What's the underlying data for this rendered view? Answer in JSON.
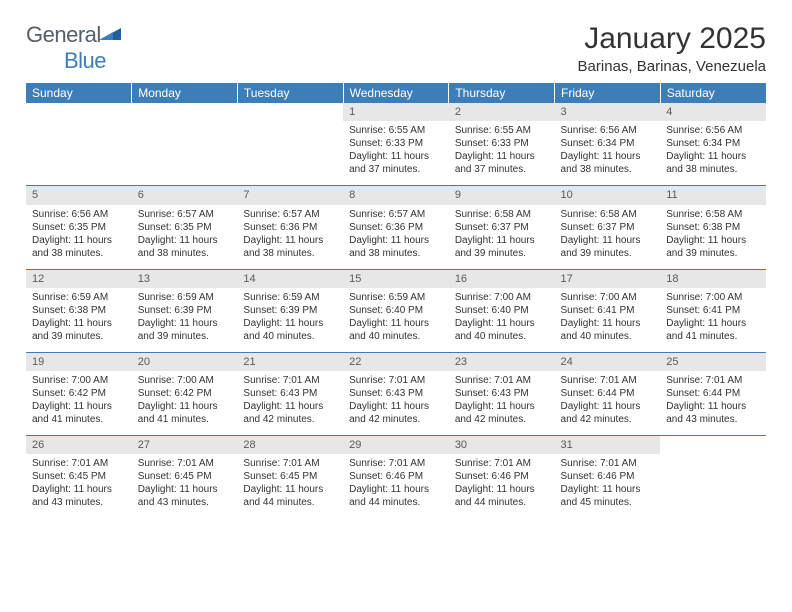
{
  "logo": {
    "text1": "General",
    "text2": "Blue"
  },
  "title": "January 2025",
  "location": "Barinas, Barinas, Venezuela",
  "colors": {
    "header_bg": "#3d7eb9",
    "header_text": "#ffffff",
    "daynum_bg": "#e7e7e7",
    "daynum_text": "#5a5a5a",
    "border": "#3d7eb9",
    "body_text": "#333333"
  },
  "day_headers": [
    "Sunday",
    "Monday",
    "Tuesday",
    "Wednesday",
    "Thursday",
    "Friday",
    "Saturday"
  ],
  "weeks": [
    [
      null,
      null,
      null,
      {
        "n": "1",
        "sunrise": "6:55 AM",
        "sunset": "6:33 PM",
        "daylight": "11 hours and 37 minutes."
      },
      {
        "n": "2",
        "sunrise": "6:55 AM",
        "sunset": "6:33 PM",
        "daylight": "11 hours and 37 minutes."
      },
      {
        "n": "3",
        "sunrise": "6:56 AM",
        "sunset": "6:34 PM",
        "daylight": "11 hours and 38 minutes."
      },
      {
        "n": "4",
        "sunrise": "6:56 AM",
        "sunset": "6:34 PM",
        "daylight": "11 hours and 38 minutes."
      }
    ],
    [
      {
        "n": "5",
        "sunrise": "6:56 AM",
        "sunset": "6:35 PM",
        "daylight": "11 hours and 38 minutes."
      },
      {
        "n": "6",
        "sunrise": "6:57 AM",
        "sunset": "6:35 PM",
        "daylight": "11 hours and 38 minutes."
      },
      {
        "n": "7",
        "sunrise": "6:57 AM",
        "sunset": "6:36 PM",
        "daylight": "11 hours and 38 minutes."
      },
      {
        "n": "8",
        "sunrise": "6:57 AM",
        "sunset": "6:36 PM",
        "daylight": "11 hours and 38 minutes."
      },
      {
        "n": "9",
        "sunrise": "6:58 AM",
        "sunset": "6:37 PM",
        "daylight": "11 hours and 39 minutes."
      },
      {
        "n": "10",
        "sunrise": "6:58 AM",
        "sunset": "6:37 PM",
        "daylight": "11 hours and 39 minutes."
      },
      {
        "n": "11",
        "sunrise": "6:58 AM",
        "sunset": "6:38 PM",
        "daylight": "11 hours and 39 minutes."
      }
    ],
    [
      {
        "n": "12",
        "sunrise": "6:59 AM",
        "sunset": "6:38 PM",
        "daylight": "11 hours and 39 minutes."
      },
      {
        "n": "13",
        "sunrise": "6:59 AM",
        "sunset": "6:39 PM",
        "daylight": "11 hours and 39 minutes."
      },
      {
        "n": "14",
        "sunrise": "6:59 AM",
        "sunset": "6:39 PM",
        "daylight": "11 hours and 40 minutes."
      },
      {
        "n": "15",
        "sunrise": "6:59 AM",
        "sunset": "6:40 PM",
        "daylight": "11 hours and 40 minutes."
      },
      {
        "n": "16",
        "sunrise": "7:00 AM",
        "sunset": "6:40 PM",
        "daylight": "11 hours and 40 minutes."
      },
      {
        "n": "17",
        "sunrise": "7:00 AM",
        "sunset": "6:41 PM",
        "daylight": "11 hours and 40 minutes."
      },
      {
        "n": "18",
        "sunrise": "7:00 AM",
        "sunset": "6:41 PM",
        "daylight": "11 hours and 41 minutes."
      }
    ],
    [
      {
        "n": "19",
        "sunrise": "7:00 AM",
        "sunset": "6:42 PM",
        "daylight": "11 hours and 41 minutes."
      },
      {
        "n": "20",
        "sunrise": "7:00 AM",
        "sunset": "6:42 PM",
        "daylight": "11 hours and 41 minutes."
      },
      {
        "n": "21",
        "sunrise": "7:01 AM",
        "sunset": "6:43 PM",
        "daylight": "11 hours and 42 minutes."
      },
      {
        "n": "22",
        "sunrise": "7:01 AM",
        "sunset": "6:43 PM",
        "daylight": "11 hours and 42 minutes."
      },
      {
        "n": "23",
        "sunrise": "7:01 AM",
        "sunset": "6:43 PM",
        "daylight": "11 hours and 42 minutes."
      },
      {
        "n": "24",
        "sunrise": "7:01 AM",
        "sunset": "6:44 PM",
        "daylight": "11 hours and 42 minutes."
      },
      {
        "n": "25",
        "sunrise": "7:01 AM",
        "sunset": "6:44 PM",
        "daylight": "11 hours and 43 minutes."
      }
    ],
    [
      {
        "n": "26",
        "sunrise": "7:01 AM",
        "sunset": "6:45 PM",
        "daylight": "11 hours and 43 minutes."
      },
      {
        "n": "27",
        "sunrise": "7:01 AM",
        "sunset": "6:45 PM",
        "daylight": "11 hours and 43 minutes."
      },
      {
        "n": "28",
        "sunrise": "7:01 AM",
        "sunset": "6:45 PM",
        "daylight": "11 hours and 44 minutes."
      },
      {
        "n": "29",
        "sunrise": "7:01 AM",
        "sunset": "6:46 PM",
        "daylight": "11 hours and 44 minutes."
      },
      {
        "n": "30",
        "sunrise": "7:01 AM",
        "sunset": "6:46 PM",
        "daylight": "11 hours and 44 minutes."
      },
      {
        "n": "31",
        "sunrise": "7:01 AM",
        "sunset": "6:46 PM",
        "daylight": "11 hours and 45 minutes."
      },
      null
    ]
  ],
  "labels": {
    "sunrise": "Sunrise:",
    "sunset": "Sunset:",
    "daylight": "Daylight:"
  }
}
